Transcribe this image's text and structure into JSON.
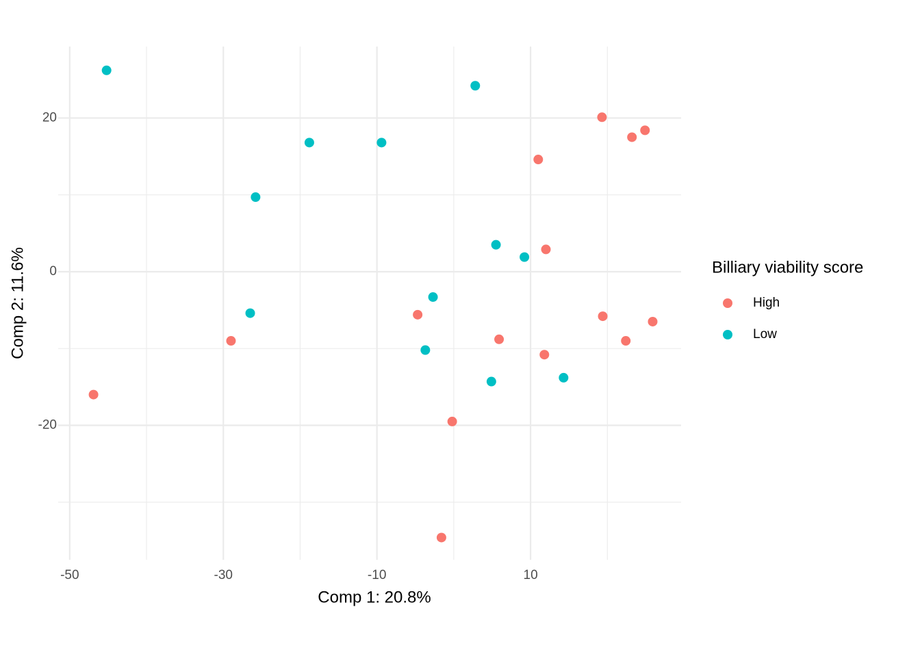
{
  "chart_data": {
    "type": "scatter",
    "x_label": "Comp 1: 20.8%",
    "y_label": "Comp 2: 11.6%",
    "legend_title": "Billiary viability score",
    "legend_position": "right",
    "grid": true,
    "xlim": [
      -51.5,
      29.6
    ],
    "ylim": [
      -37.5,
      29.3
    ],
    "xticks": [
      -50,
      -30,
      -10,
      10
    ],
    "yticks": [
      -20,
      0,
      20
    ],
    "x_minor_ticks": [
      -40,
      -20,
      0,
      20
    ],
    "y_minor_ticks": [
      -30,
      -10,
      10
    ],
    "series": [
      {
        "name": "High",
        "color": "#F8766D",
        "x": [
          19.3,
          23.2,
          24.9,
          11.0,
          12.0,
          -4.7,
          -29.0,
          -46.9,
          5.9,
          11.8,
          19.4,
          22.4,
          25.9,
          -0.2,
          -1.6
        ],
        "values": [
          20.1,
          17.5,
          18.4,
          14.6,
          2.9,
          -5.6,
          -9.0,
          -16.0,
          -8.8,
          -10.8,
          -5.8,
          -9.0,
          -6.5,
          -19.5,
          -34.6
        ]
      },
      {
        "name": "Low",
        "color": "#00BFC4",
        "x": [
          -45.2,
          2.8,
          -18.8,
          -9.4,
          -25.8,
          5.5,
          9.2,
          -2.7,
          -26.5,
          -3.7,
          4.9,
          14.3
        ],
        "values": [
          26.2,
          24.2,
          16.8,
          16.8,
          9.7,
          3.5,
          1.9,
          -3.3,
          -5.4,
          -10.2,
          -14.3,
          -13.8
        ]
      }
    ]
  }
}
